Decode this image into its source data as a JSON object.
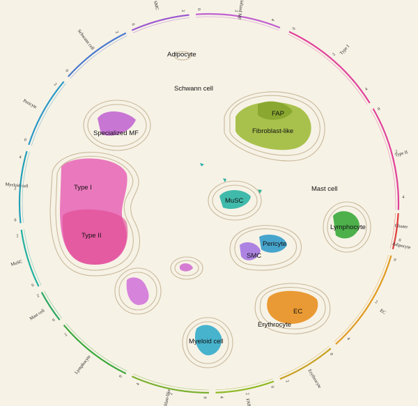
{
  "colors": {
    "background": "#f7f2e6",
    "outline": "#c8b89a"
  },
  "cluster_labels": {
    "adipocyte": "Adipocyte",
    "schwann": "Schwann cell",
    "fap": "FAP",
    "fibroblast": "Fibroblast-like",
    "specialized_mf": "Specialized MF",
    "type_i": "Type I",
    "type_ii": "Type II",
    "musc": "MuSC",
    "mast": "Mast cell",
    "lymphocyte": "Lymphocyte",
    "pericyte": "Pericyte",
    "smc": "SMC",
    "ec": "EC",
    "erythrocyte": "Erythrocyte",
    "myeloid": "Myeloid cell"
  },
  "ring_segments": [
    {
      "id": "type_i",
      "label": "Type I",
      "color": "#e0409a",
      "ticks": [
        "0",
        "2",
        "4"
      ]
    },
    {
      "id": "type_ii",
      "label": "Type II",
      "color": "#e0409a",
      "ticks": [
        "0",
        "2",
        "4"
      ]
    },
    {
      "id": "cluster",
      "label": "Cluster",
      "color": "#e03b3b",
      "ticks": []
    },
    {
      "id": "adipocyte",
      "label": "Adipocyte",
      "color": "#d94040",
      "ticks": [
        "0"
      ]
    },
    {
      "id": "ec",
      "label": "EC",
      "color": "#e09a20",
      "ticks": [
        "0",
        "2",
        "4"
      ]
    },
    {
      "id": "erythrocyte",
      "label": "Erythrocyte",
      "color": "#c8a020",
      "ticks": [
        "0",
        "2"
      ]
    },
    {
      "id": "fap",
      "label": "FAP",
      "color": "#8cb820",
      "ticks": [
        "0",
        "2",
        "4"
      ]
    },
    {
      "id": "fibroblast",
      "label": "Fibroblast-like",
      "color": "#7ab030",
      "ticks": [
        "0",
        "2",
        "4"
      ]
    },
    {
      "id": "lymphocyte",
      "label": "Lymphocyte",
      "color": "#3aa83a",
      "ticks": [
        "0",
        "2"
      ]
    },
    {
      "id": "mast",
      "label": "Mast cell",
      "color": "#2aa860",
      "ticks": [
        "0",
        "2"
      ]
    },
    {
      "id": "musc",
      "label": "MuSC",
      "color": "#20b0a0",
      "ticks": [
        "0",
        "2"
      ]
    },
    {
      "id": "myeloid",
      "label": "Myeloid cell",
      "color": "#20a0b8",
      "ticks": [
        "0",
        "2",
        "4"
      ]
    },
    {
      "id": "pericyte",
      "label": "Pericyte",
      "color": "#2898c8",
      "ticks": [
        "0",
        "2"
      ]
    },
    {
      "id": "schwann",
      "label": "Schwann cell",
      "color": "#4878d0",
      "ticks": [
        "0",
        "2"
      ]
    },
    {
      "id": "smc",
      "label": "SMC",
      "color": "#9b59d0",
      "ticks": [
        "0",
        "2"
      ]
    },
    {
      "id": "specialized_mf",
      "label": "Specialized MF",
      "color": "#c060d0",
      "ticks": [
        "0",
        "2",
        "4"
      ]
    }
  ]
}
